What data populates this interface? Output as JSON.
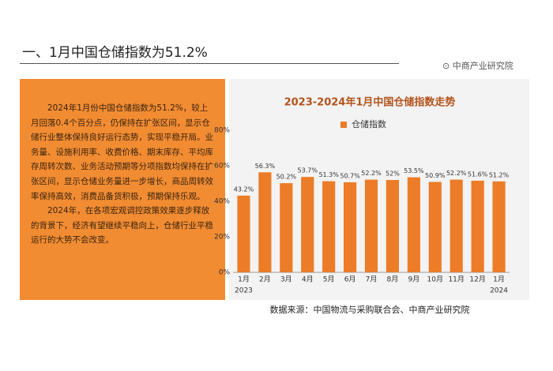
{
  "header": {
    "title": "一、1月中国仓储指数为51.2%",
    "logo": "中商产业研究院"
  },
  "sidebar": {
    "paragraphs": [
      "2024年1月份中国仓储指数为51.2%，较上月回落0.4个百分点，仍保持在扩张区间，显示仓储行业整体保持良好运行态势，实现平稳开局。业务量、设施利用率、收费价格、期末库存、平均库存周转次数、业务活动预期等分项指数均保持在扩张区间，显示仓储业务量进一步增长，商品周转效率保持高效，消费品备货积极，预期保持乐观。",
      "2024年，在各项宏观调控政策效果逐步释放的背景下，经济有望继续平稳向上，仓储行业平稳运行的大势不会改变。"
    ]
  },
  "chart_data": {
    "type": "bar",
    "title": "2023-2024年1月中国仓储指数走势",
    "categories": [
      "1月",
      "2月",
      "3月",
      "4月",
      "5月",
      "6月",
      "7月",
      "8月",
      "9月",
      "10月",
      "11月",
      "12月",
      "1月"
    ],
    "x_sublabels": [
      "2023",
      null,
      null,
      null,
      null,
      null,
      null,
      null,
      null,
      null,
      null,
      null,
      "2024"
    ],
    "series": [
      {
        "name": "仓储指数",
        "color": "#ec7c27",
        "values": [
          43.2,
          56.3,
          50.2,
          53.7,
          51.3,
          50.7,
          52.2,
          52,
          53.5,
          50.9,
          52.2,
          51.6,
          51.2
        ],
        "value_labels": [
          "43.2%",
          "56.3%",
          "50.2%",
          "53.7%",
          "51.3%",
          "50.7%",
          "52.2%",
          "52%",
          "53.5%",
          "50.9%",
          "52.2%",
          "51.6%",
          "51.2%"
        ]
      }
    ],
    "ylim": [
      0,
      80
    ],
    "yticks": [
      {
        "value": 0,
        "label": "0%"
      },
      {
        "value": 20,
        "label": "20%"
      },
      {
        "value": 40,
        "label": "40%"
      },
      {
        "value": 60,
        "label": "60%"
      },
      {
        "value": 80,
        "label": "80%"
      }
    ],
    "source": "数据来源：中国物流与采购联合会、中商产业研究院"
  }
}
